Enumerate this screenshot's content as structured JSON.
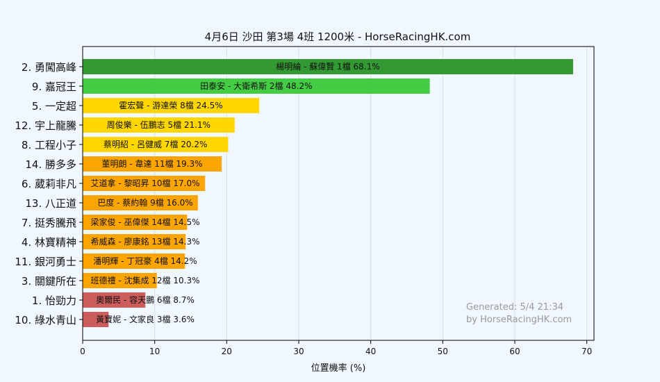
{
  "chart_data": {
    "type": "bar",
    "orientation": "horizontal",
    "title": "4月6日  沙田  第3場  4班  1200米 - HorseRacingHK.com",
    "xlabel": "位置機率 (%)",
    "ylabel": "",
    "xlim": [
      0,
      71
    ],
    "xticks": [
      0,
      10,
      20,
      30,
      40,
      50,
      60,
      70
    ],
    "grid": true,
    "categories": [
      "2. 勇闖高峰",
      "9. 嘉冠王",
      "5. 一定超",
      "12. 宇上龍騰",
      "8. 工程小子",
      "14. 勝多多",
      "6. 葳莉非凡",
      "13. 八正道",
      "7. 挺秀騰飛",
      "4. 林寶精神",
      "11. 銀河勇士",
      "3. 關鍵所在",
      "1. 怡勁力",
      "10. 綠水青山"
    ],
    "values": [
      68.1,
      48.2,
      24.5,
      21.1,
      20.2,
      19.3,
      17.0,
      16.0,
      14.5,
      14.3,
      14.2,
      10.3,
      8.7,
      3.6
    ],
    "labels": [
      "楊明綸 - 蘇偉賢 1檔  68.1%",
      "田泰安 - 大衛希斯 2檔  48.2%",
      "霍宏聲 - 游達榮 8檔  24.5%",
      "周俊樂 - 伍鵬志 5檔  21.1%",
      "蔡明紹 - 呂健威 7檔  20.2%",
      "董明朗 - 韋達 11檔  19.3%",
      "艾道拿 - 黎昭昇 10檔  17.0%",
      "巴度 - 蔡約翰 9檔  16.0%",
      "梁家俊 - 巫偉傑 14檔  14.5%",
      "希威森 - 廖康銘 13檔  14.3%",
      "潘明輝 - 丁冠豪 4檔  14.2%",
      "班德禮 - 沈集成 12檔  10.3%",
      "奧爾民 - 容天鵬 6檔  8.7%",
      "黃寶妮 - 文家良 3檔  3.6%"
    ],
    "colors": [
      "#339933",
      "#44cc44",
      "#ffd700",
      "#ffd700",
      "#ffd700",
      "#ffa500",
      "#ffa500",
      "#ffa500",
      "#ffa500",
      "#ffa500",
      "#ffa500",
      "#ffa500",
      "#cd5c5c",
      "#cd5c5c"
    ],
    "watermark": [
      "Generated: 5/4 21:34",
      "by HorseRacingHK.com"
    ]
  }
}
